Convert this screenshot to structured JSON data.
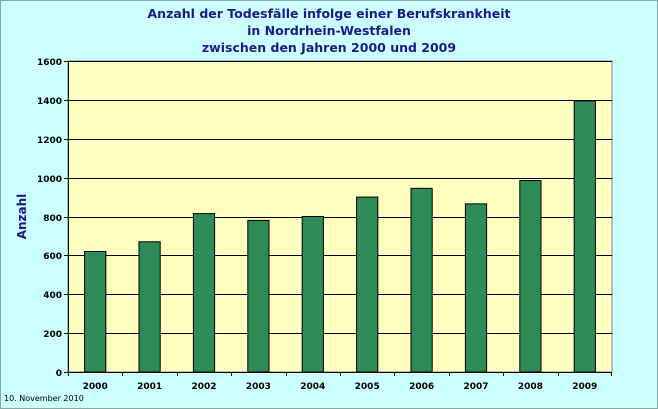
{
  "chart_data": {
    "type": "bar",
    "title": [
      "Anzahl der Todesfälle infolge einer Berufskrankheit",
      "in Nordrhein-Westfalen",
      "zwischen den Jahren 2000 und 2009"
    ],
    "ylabel": "Anzahl",
    "xlabel": "",
    "categories": [
      "2000",
      "2001",
      "2002",
      "2003",
      "2004",
      "2005",
      "2006",
      "2007",
      "2008",
      "2009"
    ],
    "values": [
      620,
      670,
      815,
      780,
      800,
      900,
      945,
      865,
      985,
      1395
    ],
    "ylim": [
      0,
      1600
    ],
    "yticks": [
      "0",
      "200",
      "400",
      "600",
      "800",
      "1000",
      "1200",
      "1400",
      "1600"
    ],
    "grid": true,
    "colors": {
      "bar": "#2e8b57",
      "plot_bg": "#ffffc0",
      "title": "#1a1a8c",
      "background": "#ccffff"
    }
  },
  "footnote": "10. November 2010"
}
